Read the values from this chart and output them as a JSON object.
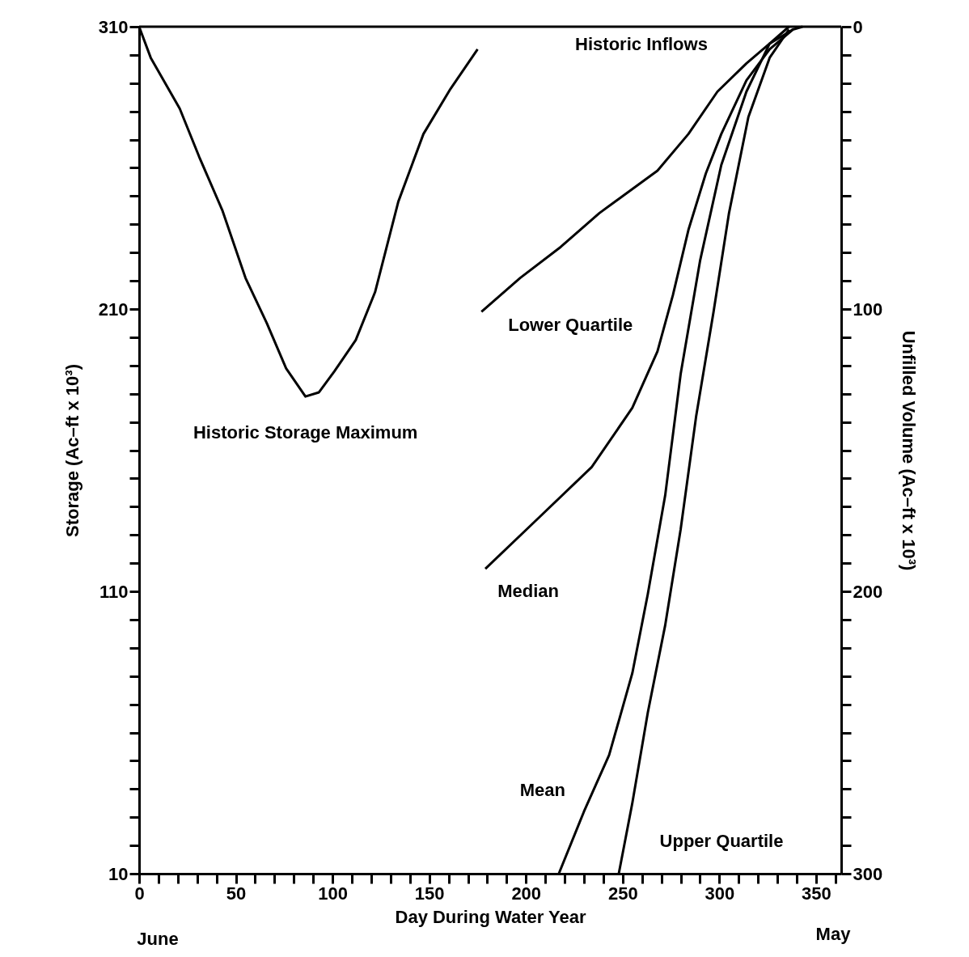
{
  "chart_data": {
    "type": "line",
    "xlabel": "Day During Water Year",
    "ylabel": "Storage (Ac–ft x 10³)",
    "y2label": "Unfilled Volume (Ac–ft x 10³)",
    "x": [
      0,
      6,
      21,
      31,
      43,
      55,
      66,
      76,
      86,
      93,
      101,
      112,
      122,
      134,
      147,
      161,
      175
    ],
    "series": [
      {
        "name": "Historic Storage Maximum",
        "color": "#000000",
        "values": [
          310,
          299,
          281,
          264,
          245,
          221,
          205,
          189,
          179,
          180.5,
          188,
          199,
          216,
          248,
          272,
          288,
          302
        ]
      },
      {
        "name": "Lower Quartile",
        "color": "#000000",
        "axis": "y2",
        "x": [
          177,
          197,
          218,
          238,
          268,
          284,
          299,
          314,
          326,
          338,
          343
        ],
        "values": [
          101,
          89,
          78,
          66,
          51,
          38,
          23,
          13,
          6,
          1,
          0
        ]
      },
      {
        "name": "Median",
        "color": "#000000",
        "axis": "y2",
        "x": [
          179,
          205,
          234,
          255,
          268,
          276,
          284,
          293,
          301,
          314,
          326,
          338
        ],
        "values": [
          192,
          175,
          156,
          135,
          115,
          95,
          72,
          52,
          38,
          19,
          8,
          1
        ]
      },
      {
        "name": "Mean",
        "color": "#000000",
        "axis": "y2",
        "x": [
          217,
          230,
          243,
          255,
          263,
          272,
          280,
          290,
          301,
          314,
          326,
          336
        ],
        "values": [
          300,
          278,
          258,
          229,
          201,
          166,
          123,
          83,
          49,
          23,
          6,
          0
        ]
      },
      {
        "name": "Upper Quartile",
        "color": "#000000",
        "axis": "y2",
        "x": [
          248,
          255,
          263,
          272,
          280,
          288,
          297,
          305,
          315,
          326,
          336
        ],
        "values": [
          300,
          275,
          243,
          212,
          178,
          138,
          101,
          66,
          32,
          11,
          1
        ]
      }
    ],
    "annotations": [
      "Historic Inflows",
      "June",
      "May"
    ],
    "xlim": [
      0,
      363
    ],
    "xticks": [
      0,
      {
        "value": 10,
        "label": null
      },
      {
        "value": 20,
        "label": null
      },
      {
        "value": 30,
        "label": null
      },
      {
        "value": 40,
        "label": null
      },
      50,
      {
        "value": 60,
        "label": null
      },
      {
        "value": 70,
        "label": null
      },
      {
        "value": 80,
        "label": null
      },
      {
        "value": 90,
        "label": null
      },
      100,
      {
        "value": 110,
        "label": null
      },
      {
        "value": 120,
        "label": null
      },
      {
        "value": 130,
        "label": null
      },
      {
        "value": 140,
        "label": null
      },
      150,
      {
        "value": 160,
        "label": null
      },
      {
        "value": 170,
        "label": null
      },
      {
        "value": 180,
        "label": null
      },
      {
        "value": 190,
        "label": null
      },
      200,
      {
        "value": 210,
        "label": null
      },
      {
        "value": 220,
        "label": null
      },
      {
        "value": 230,
        "label": null
      },
      {
        "value": 240,
        "label": null
      },
      250,
      {
        "value": 260,
        "label": null
      },
      {
        "value": 270,
        "label": null
      },
      {
        "value": 280,
        "label": null
      },
      {
        "value": 290,
        "label": null
      },
      300,
      {
        "value": 310,
        "label": null
      },
      {
        "value": 320,
        "label": null
      },
      {
        "value": 330,
        "label": null
      },
      {
        "value": 340,
        "label": null
      },
      350,
      {
        "value": 360,
        "label": null
      }
    ],
    "ylim": [
      10,
      310
    ],
    "yticks": [
      10,
      {
        "value": 20,
        "label": null
      },
      {
        "value": 30,
        "label": null
      },
      {
        "value": 40,
        "label": null
      },
      {
        "value": 50,
        "label": null
      },
      {
        "value": 60,
        "label": null
      },
      {
        "value": 70,
        "label": null
      },
      {
        "value": 80,
        "label": null
      },
      {
        "value": 90,
        "label": null
      },
      {
        "value": 100,
        "label": null
      },
      110,
      {
        "value": 120,
        "label": null
      },
      {
        "value": 130,
        "label": null
      },
      {
        "value": 140,
        "label": null
      },
      {
        "value": 150,
        "label": null
      },
      {
        "value": 160,
        "label": null
      },
      {
        "value": 170,
        "label": null
      },
      {
        "value": 180,
        "label": null
      },
      {
        "value": 190,
        "label": null
      },
      {
        "value": 200,
        "label": null
      },
      210,
      {
        "value": 220,
        "label": null
      },
      {
        "value": 230,
        "label": null
      },
      {
        "value": 240,
        "label": null
      },
      {
        "value": 250,
        "label": null
      },
      {
        "value": 260,
        "label": null
      },
      {
        "value": 270,
        "label": null
      },
      {
        "value": 280,
        "label": null
      },
      {
        "value": 290,
        "label": null
      },
      {
        "value": 300,
        "label": null
      },
      310
    ],
    "y2lim": [
      300,
      0
    ],
    "y2ticks": [
      0,
      {
        "value": 10,
        "label": null
      },
      {
        "value": 20,
        "label": null
      },
      {
        "value": 30,
        "label": null
      },
      {
        "value": 40,
        "label": null
      },
      {
        "value": 50,
        "label": null
      },
      {
        "value": 60,
        "label": null
      },
      {
        "value": 70,
        "label": null
      },
      {
        "value": 80,
        "label": null
      },
      {
        "value": 90,
        "label": null
      },
      100,
      {
        "value": 110,
        "label": null
      },
      {
        "value": 120,
        "label": null
      },
      {
        "value": 130,
        "label": null
      },
      {
        "value": 140,
        "label": null
      },
      {
        "value": 150,
        "label": null
      },
      {
        "value": 160,
        "label": null
      },
      {
        "value": 170,
        "label": null
      },
      {
        "value": 180,
        "label": null
      },
      {
        "value": 190,
        "label": null
      },
      200,
      {
        "value": 210,
        "label": null
      },
      {
        "value": 220,
        "label": null
      },
      {
        "value": 230,
        "label": null
      },
      {
        "value": 240,
        "label": null
      },
      {
        "value": 250,
        "label": null
      },
      {
        "value": 260,
        "label": null
      },
      {
        "value": 270,
        "label": null
      },
      {
        "value": 280,
        "label": null
      },
      {
        "value": 290,
        "label": null
      },
      300
    ],
    "grid": false,
    "legend": false,
    "marker": "none",
    "line_style": "solid"
  }
}
